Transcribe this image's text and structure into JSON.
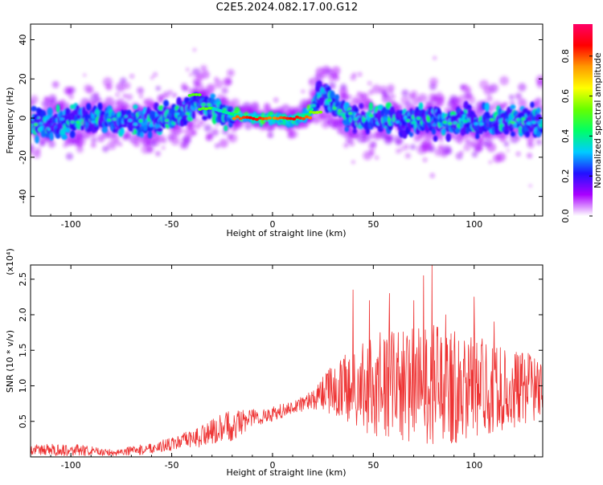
{
  "title": "C2E5.2024.082.17.00.G12",
  "colors": {
    "snr_line": "#ee3333",
    "colormap": [
      "#ffffff",
      "#aa00ff",
      "#2211ff",
      "#00ccff",
      "#00ff66",
      "#66ff00",
      "#ffff00",
      "#ff9900",
      "#ff0000",
      "#ff0066"
    ]
  },
  "chart_data": [
    {
      "type": "heatmap",
      "xlabel": "Height of straight line (km)",
      "ylabel": "Frequency (Hz)",
      "xlim": [
        -120,
        134
      ],
      "ylim": [
        -50,
        48
      ],
      "x_ticks": [
        -100,
        -50,
        0,
        50,
        100
      ],
      "y_ticks": [
        -40,
        -20,
        0,
        20,
        40
      ],
      "colorbar": {
        "label": "Normalized spectral amplitude",
        "range": [
          0,
          0.96
        ],
        "ticks": [
          "0.0",
          "0.2",
          "0.4",
          "0.6",
          "0.8"
        ]
      },
      "ridge": {
        "x": [
          -120,
          -100,
          -80,
          -60,
          -45,
          -35,
          -30,
          -20,
          -10,
          0,
          10,
          18,
          22,
          24,
          30,
          40,
          60,
          80,
          100,
          120,
          134
        ],
        "y": [
          -4,
          -1,
          0,
          -3,
          2,
          8,
          5,
          2,
          0,
          0,
          -1,
          2,
          10,
          14,
          6,
          0,
          -1,
          -2,
          -2,
          -2,
          -2
        ]
      },
      "hotspots": [
        {
          "x": -10,
          "y": 0,
          "value": 0.9
        },
        {
          "x": 10,
          "y": 0,
          "value": 0.9
        },
        {
          "x": 22,
          "y": 3,
          "value": 0.6
        },
        {
          "x": -38,
          "y": 12,
          "value": 0.55
        },
        {
          "x": -33,
          "y": 5,
          "value": 0.55
        }
      ]
    },
    {
      "type": "line",
      "xlabel": "Height of straight line (km)",
      "ylabel": "SNR (10 * v/v)",
      "multiplier": "(x10⁴)",
      "xlim": [
        -120,
        134
      ],
      "ylim": [
        0,
        2.7
      ],
      "x_ticks": [
        -100,
        -50,
        0,
        50,
        100
      ],
      "y_ticks": [
        "0.5",
        "1.0",
        "1.5",
        "2.0",
        "2.5"
      ],
      "envelope": {
        "x": [
          -120,
          -100,
          -80,
          -65,
          -50,
          -40,
          -30,
          -20,
          -10,
          0,
          10,
          20,
          25,
          30,
          40,
          50,
          60,
          70,
          80,
          90,
          100,
          110,
          120,
          134
        ],
        "mean": [
          0.1,
          0.1,
          0.06,
          0.1,
          0.18,
          0.25,
          0.35,
          0.45,
          0.55,
          0.6,
          0.7,
          0.8,
          0.9,
          0.95,
          0.95,
          1.0,
          1.0,
          1.0,
          1.0,
          1.0,
          1.0,
          0.95,
          0.95,
          1.0
        ],
        "spread": [
          0.08,
          0.1,
          0.05,
          0.08,
          0.1,
          0.15,
          0.2,
          0.25,
          0.15,
          0.12,
          0.1,
          0.15,
          0.25,
          0.45,
          0.6,
          0.8,
          0.9,
          0.9,
          0.95,
          0.9,
          0.8,
          0.7,
          0.6,
          0.5
        ]
      },
      "peaks": [
        {
          "x": 40,
          "y": 2.35
        },
        {
          "x": 48,
          "y": 2.2
        },
        {
          "x": 58,
          "y": 2.3
        },
        {
          "x": 70,
          "y": 2.2
        },
        {
          "x": 75,
          "y": 2.55
        },
        {
          "x": 79,
          "y": 2.7
        },
        {
          "x": 86,
          "y": 2.0
        },
        {
          "x": 100,
          "y": 2.25
        },
        {
          "x": 110,
          "y": 1.9
        }
      ]
    }
  ]
}
